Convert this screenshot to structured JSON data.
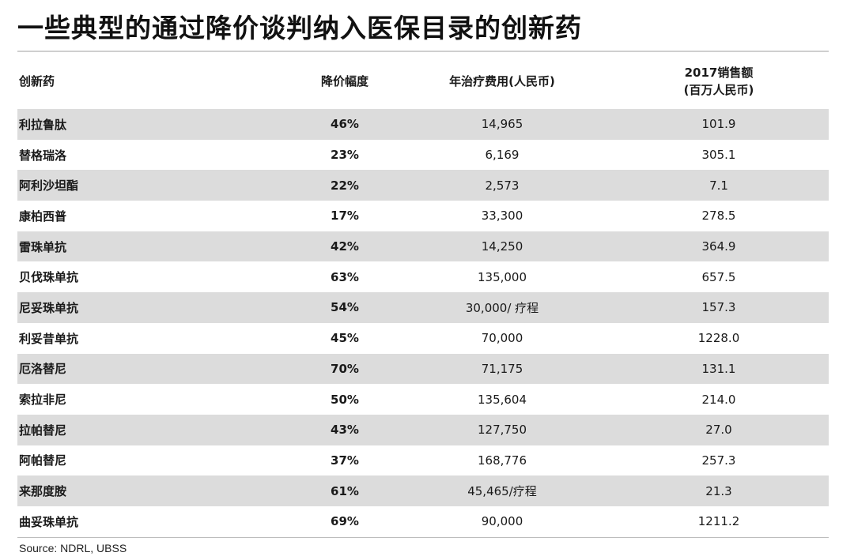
{
  "title": "一些典型的通过降价谈判纳入医保目录的创新药",
  "table": {
    "headers": {
      "drug": "创新药",
      "price_cut": "降价幅度",
      "annual_cost": "年治疗费用(人民币)",
      "sales_line1": "2017销售额",
      "sales_line2": "(百万人民币)"
    },
    "rows": [
      {
        "drug": "利拉鲁肽",
        "price_cut": "46%",
        "annual_cost": "14,965",
        "sales": "101.9"
      },
      {
        "drug": "替格瑞洛",
        "price_cut": "23%",
        "annual_cost": "6,169",
        "sales": "305.1"
      },
      {
        "drug": "阿利沙坦酯",
        "price_cut": "22%",
        "annual_cost": "2,573",
        "sales": "7.1"
      },
      {
        "drug": "康柏西普",
        "price_cut": "17%",
        "annual_cost": "33,300",
        "sales": "278.5"
      },
      {
        "drug": "雷珠单抗",
        "price_cut": "42%",
        "annual_cost": "14,250",
        "sales": "364.9"
      },
      {
        "drug": "贝伐珠单抗",
        "price_cut": "63%",
        "annual_cost": "135,000",
        "sales": "657.5"
      },
      {
        "drug": "尼妥珠单抗",
        "price_cut": "54%",
        "annual_cost": "30,000/ 疗程",
        "sales": "157.3"
      },
      {
        "drug": "利妥昔单抗",
        "price_cut": "45%",
        "annual_cost": "70,000",
        "sales": "1228.0"
      },
      {
        "drug": "厄洛替尼",
        "price_cut": "70%",
        "annual_cost": "71,175",
        "sales": "131.1"
      },
      {
        "drug": "索拉非尼",
        "price_cut": "50%",
        "annual_cost": "135,604",
        "sales": "214.0"
      },
      {
        "drug": "拉帕替尼",
        "price_cut": "43%",
        "annual_cost": "127,750",
        "sales": "27.0"
      },
      {
        "drug": "阿帕替尼",
        "price_cut": "37%",
        "annual_cost": "168,776",
        "sales": "257.3"
      },
      {
        "drug": "来那度胺",
        "price_cut": "61%",
        "annual_cost": "45,465/疗程",
        "sales": "21.3"
      },
      {
        "drug": "曲妥珠单抗",
        "price_cut": "69%",
        "annual_cost": "90,000",
        "sales": "1211.2"
      }
    ]
  },
  "source": "Source: NDRL, UBSS",
  "colors": {
    "row_shade": "#dcdcdc",
    "background": "#ffffff",
    "text": "#1a1a1a"
  }
}
